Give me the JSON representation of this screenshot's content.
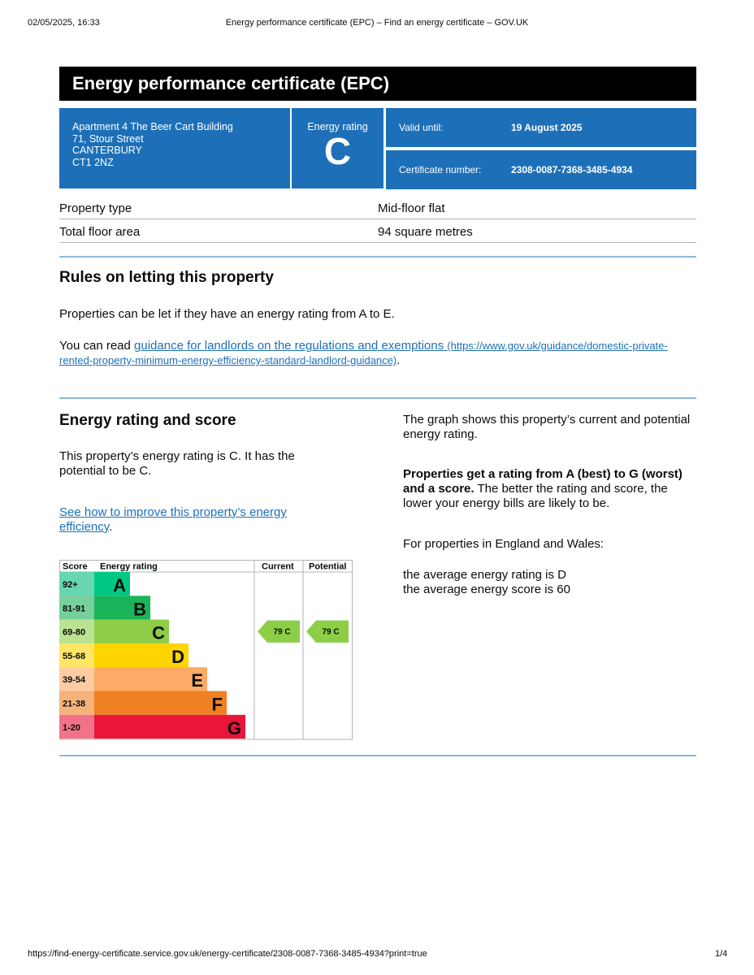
{
  "print_header": {
    "datetime": "02/05/2025, 16:33",
    "title": "Energy performance certificate (EPC) – Find an energy certificate – GOV.UK"
  },
  "print_footer": {
    "url": "https://find-energy-certificate.service.gov.uk/energy-certificate/2308-0087-7368-3485-4934?print=true",
    "page": "1/4"
  },
  "title": "Energy performance certificate (EPC)",
  "address": [
    "Apartment 4 The Beer Cart Building",
    "71, Stour Street",
    "CANTERBURY",
    "CT1 2NZ"
  ],
  "energy_rating": {
    "label": "Energy rating",
    "value": "C"
  },
  "valid_until": {
    "label": "Valid until:",
    "value": "19 August 2025"
  },
  "certificate_number": {
    "label": "Certificate number:",
    "value": "2308-0087-7368-3485-4934"
  },
  "summary": [
    {
      "label": "Property type",
      "value": "Mid-floor flat"
    },
    {
      "label": "Total floor area",
      "value": "94 square metres"
    }
  ],
  "rules": {
    "heading": "Rules on letting this property",
    "p1": "Properties can be let if they have an energy rating from A to E.",
    "p2_prefix": "You can read ",
    "link_text": "guidance for landlords on the regulations and exemptions",
    "link_url": "(https://www.gov.uk/guidance/domestic-private-rented-property-minimum-energy-efficiency-standard-landlord-guidance)",
    "p2_suffix": "."
  },
  "score_section": {
    "heading": "Energy rating and score",
    "p1": "This property’s energy rating is C. It has the potential to be C.",
    "link_text": "See how to improve this property’s energy efficiency",
    "link_suffix": ".",
    "right_p1": "The graph shows this property’s current and potential energy rating.",
    "right_bold": "Properties get a rating from A (best) to G (worst) and a score.",
    "right_p2_rest": " The better the rating and score, the lower your energy bills are likely to be.",
    "right_p3": "For properties in England and Wales:",
    "avg_rating": "the average energy rating is D",
    "avg_score": "the average energy score is 60"
  },
  "chart_data": {
    "type": "table",
    "columns": [
      "Score",
      "Energy rating",
      "Current",
      "Potential"
    ],
    "bands": [
      {
        "score": "92+",
        "letter": "A",
        "color": "#00c781",
        "score_bg": "#66d7b0"
      },
      {
        "score": "81-91",
        "letter": "B",
        "color": "#19b459",
        "score_bg": "#75d09b"
      },
      {
        "score": "69-80",
        "letter": "C",
        "color": "#8dce46",
        "score_bg": "#bbe290"
      },
      {
        "score": "55-68",
        "letter": "D",
        "color": "#ffd500",
        "score_bg": "#ffe666"
      },
      {
        "score": "39-54",
        "letter": "E",
        "color": "#fcaa65",
        "score_bg": "#fdcca3"
      },
      {
        "score": "21-38",
        "letter": "F",
        "color": "#ef8023",
        "score_bg": "#f5b37b"
      },
      {
        "score": "1-20",
        "letter": "G",
        "color": "#e9153b",
        "score_bg": "#f27389"
      }
    ],
    "current": {
      "score": 79,
      "letter": "C",
      "label": "79  C"
    },
    "potential": {
      "score": 79,
      "letter": "C",
      "label": "79  C"
    }
  }
}
